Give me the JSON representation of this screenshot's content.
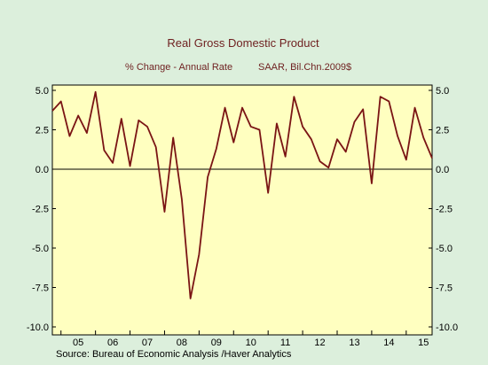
{
  "chart_data": {
    "type": "line",
    "title": "Real Gross Domestic Product",
    "subtitle_left": "% Change - Annual Rate",
    "subtitle_right": "SAAR, Bil.Chn.2009$",
    "source": "Source:  Bureau of Economic Analysis /Haver Analytics",
    "ylim": [
      -10.0,
      5.0
    ],
    "y_ticks": [
      5.0,
      2.5,
      0.0,
      -2.5,
      -5.0,
      -7.5,
      -10.0
    ],
    "y_tick_labels": [
      "5.0",
      "2.5",
      "0.0",
      "-2.5",
      "-5.0",
      "-7.5",
      "-10.0"
    ],
    "x_year_labels": [
      "05",
      "06",
      "07",
      "08",
      "09",
      "10",
      "11",
      "12",
      "13",
      "14",
      "15"
    ],
    "x_start_year": 2004.75,
    "x_end_year": 2015.75,
    "grid": false,
    "zero_line": true,
    "series": [
      {
        "values": [
          3.7,
          4.3,
          2.1,
          3.4,
          2.3,
          4.9,
          1.2,
          0.4,
          3.2,
          0.2,
          3.1,
          2.7,
          1.4,
          -2.7,
          2.0,
          -1.9,
          -8.2,
          -5.4,
          -0.5,
          1.3,
          3.9,
          1.7,
          3.9,
          2.7,
          2.5,
          -1.5,
          2.9,
          0.8,
          4.6,
          2.7,
          1.9,
          0.5,
          0.1,
          1.9,
          1.1,
          3.0,
          3.8,
          -0.9,
          4.6,
          4.3,
          2.1,
          0.6,
          3.9,
          2.0,
          0.7
        ]
      }
    ],
    "colors": {
      "background": "#dcefdc",
      "plot_area": "#ffffc0",
      "series_line": "#7a1414",
      "title_text": "#6e1f1f"
    }
  }
}
